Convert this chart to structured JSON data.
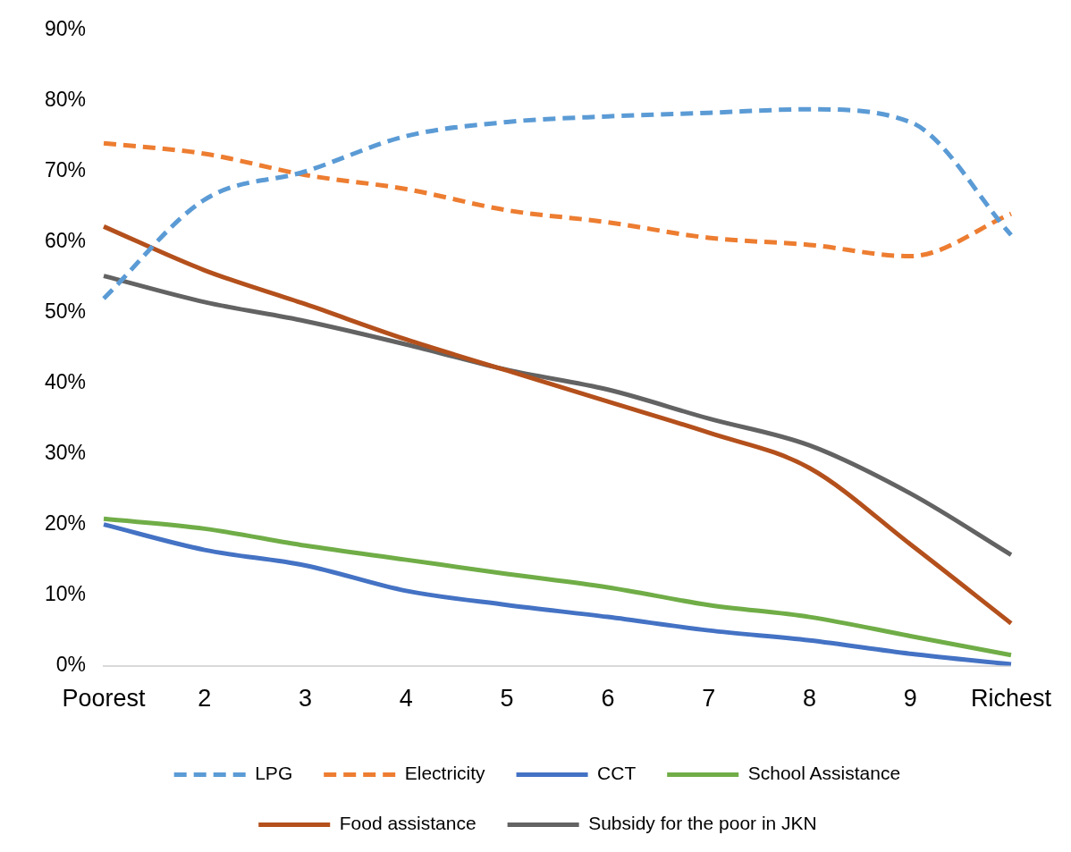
{
  "chart_data": {
    "type": "line",
    "categories": [
      "Poorest",
      "2",
      "3",
      "4",
      "5",
      "6",
      "7",
      "8",
      "9",
      "Richest"
    ],
    "ylim": [
      0,
      90
    ],
    "yticks": [
      {
        "value": 0,
        "label": "0%"
      },
      {
        "value": 10,
        "label": "10%"
      },
      {
        "value": 20,
        "label": "20%"
      },
      {
        "value": 30,
        "label": "30%"
      },
      {
        "value": 40,
        "label": "40%"
      },
      {
        "value": 50,
        "label": "50%"
      },
      {
        "value": 60,
        "label": "60%"
      },
      {
        "value": 70,
        "label": "70%"
      },
      {
        "value": 80,
        "label": "80%"
      },
      {
        "value": 90,
        "label": "90%"
      }
    ],
    "grid": false,
    "legend": "bottom",
    "marker": "none",
    "series": [
      {
        "name": "LPG",
        "color": "#5b9bd5",
        "line_style": "dashed",
        "values": [
          52,
          66,
          70,
          75,
          77,
          77.8,
          78.3,
          78.8,
          77,
          61
        ]
      },
      {
        "name": "Electricity",
        "color": "#ed7d31",
        "line_style": "dashed",
        "values": [
          74,
          72.5,
          69.5,
          67.5,
          64.5,
          62.8,
          60.6,
          59.6,
          58,
          64
        ]
      },
      {
        "name": "CCT",
        "color": "#4472c4",
        "line_style": "solid",
        "values": [
          20,
          16.4,
          14.2,
          10.6,
          8.6,
          6.9,
          5,
          3.6,
          1.7,
          0.2
        ]
      },
      {
        "name": "School Assistance",
        "color": "#70ad47",
        "line_style": "solid",
        "values": [
          20.8,
          19.4,
          17,
          15,
          13,
          11.1,
          8.6,
          6.9,
          4.2,
          1.5
        ]
      },
      {
        "name": "Food assistance",
        "color": "#b4501c",
        "line_style": "solid",
        "values": [
          62.2,
          56,
          51.2,
          46.2,
          41.8,
          37.4,
          33,
          28,
          17.2,
          6
        ]
      },
      {
        "name": "Subsidy for the poor in JKN",
        "color": "#636363",
        "line_style": "solid",
        "values": [
          55.2,
          51.5,
          48.8,
          45.5,
          41.9,
          39.1,
          35,
          31.2,
          24.4,
          15.7
        ]
      }
    ]
  }
}
